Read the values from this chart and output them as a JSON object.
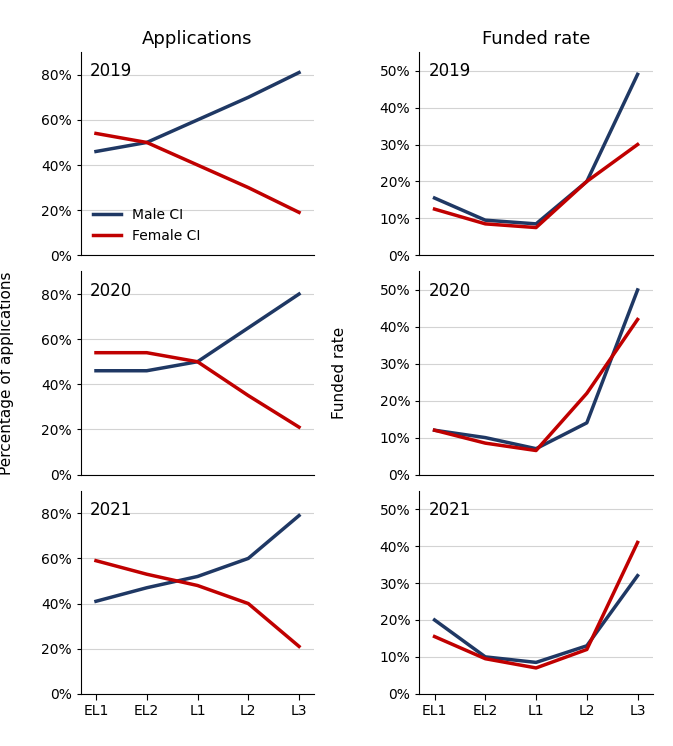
{
  "years": [
    "2019",
    "2020",
    "2021"
  ],
  "x_labels": [
    "EL1",
    "EL2",
    "L1",
    "L2",
    "L3"
  ],
  "app_male": [
    [
      0.46,
      0.5,
      0.6,
      0.7,
      0.81
    ],
    [
      0.46,
      0.46,
      0.5,
      0.65,
      0.8
    ],
    [
      0.41,
      0.47,
      0.52,
      0.6,
      0.79
    ]
  ],
  "app_female": [
    [
      0.54,
      0.5,
      0.4,
      0.3,
      0.19
    ],
    [
      0.54,
      0.54,
      0.5,
      0.35,
      0.21
    ],
    [
      0.59,
      0.53,
      0.48,
      0.4,
      0.21
    ]
  ],
  "fund_male": [
    [
      0.155,
      0.095,
      0.085,
      0.2,
      0.49
    ],
    [
      0.12,
      0.1,
      0.07,
      0.14,
      0.5
    ],
    [
      0.2,
      0.1,
      0.085,
      0.13,
      0.32
    ]
  ],
  "fund_female": [
    [
      0.125,
      0.085,
      0.075,
      0.2,
      0.3
    ],
    [
      0.12,
      0.085,
      0.065,
      0.22,
      0.42
    ],
    [
      0.155,
      0.095,
      0.07,
      0.12,
      0.41
    ]
  ],
  "col_male": "#1f3864",
  "col_female": "#c00000",
  "app_ylim": [
    0,
    0.9
  ],
  "app_yticks": [
    0.0,
    0.2,
    0.4,
    0.6,
    0.8
  ],
  "fund_ylim": [
    0,
    0.55
  ],
  "fund_yticks": [
    0.0,
    0.1,
    0.2,
    0.3,
    0.4,
    0.5
  ],
  "col_left_title": "Applications",
  "col_right_title": "Funded rate",
  "ylabel_left": "Percentage of applications",
  "ylabel_right": "Funded rate",
  "legend_labels": [
    "Male CI",
    "Female CI"
  ],
  "line_width": 2.5
}
